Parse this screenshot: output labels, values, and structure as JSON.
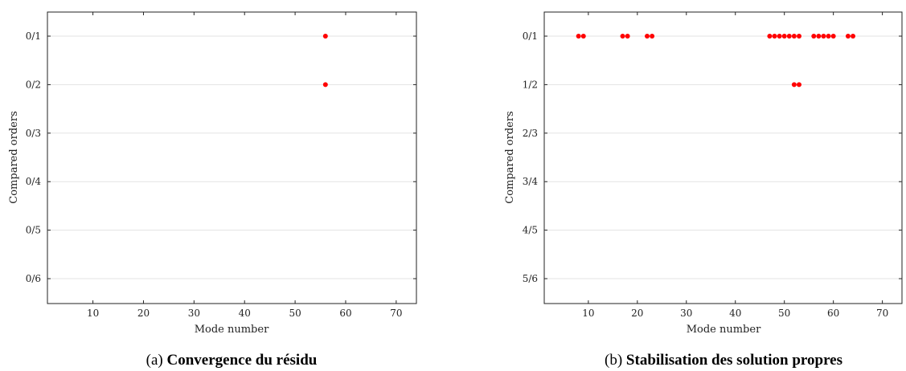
{
  "chart_data": [
    {
      "type": "scatter",
      "caption_prefix": "(a)",
      "caption_title": "Convergence du résidu",
      "xlabel": "Mode number",
      "ylabel": "Compared orders",
      "xlim": [
        1,
        74
      ],
      "xticks": [
        10,
        20,
        30,
        40,
        50,
        60,
        70
      ],
      "yticks": [
        "0/1",
        "0/2",
        "0/3",
        "0/4",
        "0/5",
        "0/6"
      ],
      "grid": "horizontal",
      "marker_color": "#ff0000",
      "points": [
        {
          "x": 56,
          "y": "0/1"
        },
        {
          "x": 56,
          "y": "0/2"
        }
      ]
    },
    {
      "type": "scatter",
      "caption_prefix": "(b)",
      "caption_title": "Stabilisation des solution propres",
      "xlabel": "Mode number",
      "ylabel": "Compared orders",
      "xlim": [
        1,
        74
      ],
      "xticks": [
        10,
        20,
        30,
        40,
        50,
        60,
        70
      ],
      "yticks": [
        "0/1",
        "1/2",
        "2/3",
        "3/4",
        "4/5",
        "5/6"
      ],
      "grid": "horizontal",
      "marker_color": "#ff0000",
      "points": [
        {
          "x": 8,
          "y": "0/1"
        },
        {
          "x": 9,
          "y": "0/1"
        },
        {
          "x": 17,
          "y": "0/1"
        },
        {
          "x": 18,
          "y": "0/1"
        },
        {
          "x": 22,
          "y": "0/1"
        },
        {
          "x": 23,
          "y": "0/1"
        },
        {
          "x": 47,
          "y": "0/1"
        },
        {
          "x": 48,
          "y": "0/1"
        },
        {
          "x": 49,
          "y": "0/1"
        },
        {
          "x": 50,
          "y": "0/1"
        },
        {
          "x": 51,
          "y": "0/1"
        },
        {
          "x": 52,
          "y": "0/1"
        },
        {
          "x": 53,
          "y": "0/1"
        },
        {
          "x": 56,
          "y": "0/1"
        },
        {
          "x": 57,
          "y": "0/1"
        },
        {
          "x": 58,
          "y": "0/1"
        },
        {
          "x": 59,
          "y": "0/1"
        },
        {
          "x": 60,
          "y": "0/1"
        },
        {
          "x": 63,
          "y": "0/1"
        },
        {
          "x": 64,
          "y": "0/1"
        },
        {
          "x": 52,
          "y": "1/2"
        },
        {
          "x": 53,
          "y": "1/2"
        }
      ]
    }
  ]
}
